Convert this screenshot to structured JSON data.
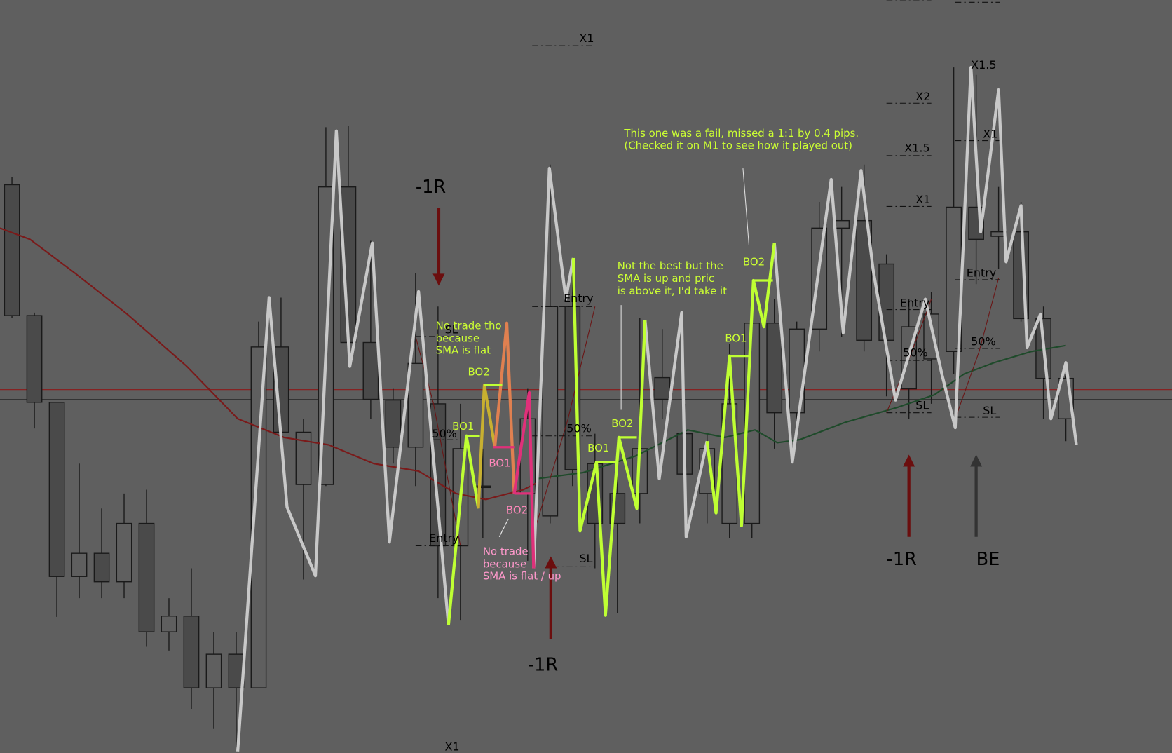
{
  "annotations": {
    "top_x1": "X1",
    "left_minus_1r": "-1R",
    "note_flat": [
      "No trade tho",
      "because",
      "SMA is flat"
    ],
    "bo2_a": "BO2",
    "bo1_a": "BO1",
    "pct_a": "50%",
    "sl_a": "SL",
    "bo1_pink": "BO1",
    "bo2_pink": "BO2",
    "note_flat_up": [
      "No trade",
      "because",
      "SMA is flat / up"
    ],
    "entry_a": "Entry",
    "entry_b": "Entry",
    "pct_b": "50%",
    "bo2_b": "BO2",
    "bo1_b": "BO1",
    "sl_b": "SL",
    "mid_minus_1r": "-1R",
    "bottom_x1": "X1",
    "note_fail": [
      "This one was a fail, missed a 1:1 by 0.4 pips.",
      "(Checked it on M1 to see how it played out)"
    ],
    "note_take": [
      "Not the best but the",
      "SMA is up and pric",
      "is above it, I'd take it"
    ],
    "bo2_c": "BO2",
    "bo1_c": "BO1",
    "x2_c": "X2",
    "x15_c": "X1.5",
    "x1_c": "X1",
    "entry_c": "Entry",
    "pct_c": "50%",
    "sl_c": "SL",
    "x15_d": "X1.5",
    "x1_d": "X1",
    "entry_d": "Entry",
    "pct_d": "50%",
    "sl_d": "SL",
    "right_minus_1r": "-1R",
    "be": "BE"
  }
}
